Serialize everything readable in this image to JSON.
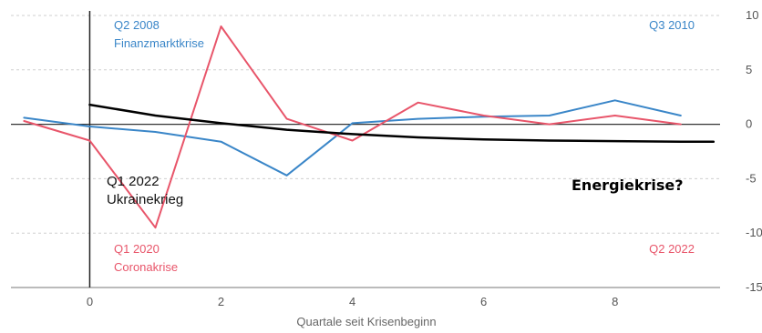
{
  "chart_data": {
    "type": "line",
    "xlabel": "Quartale seit Krisenbeginn",
    "ylabel": "",
    "xlim": [
      -1.2,
      9.6
    ],
    "ylim": [
      -15,
      10
    ],
    "x_ticks": [
      0,
      2,
      4,
      6,
      8
    ],
    "y_ticks": [
      10,
      5,
      0,
      -5,
      -10,
      -15
    ],
    "y_tick_labels": [
      "10",
      "5",
      "0",
      "-5",
      "-10",
      "-15"
    ],
    "grid": true,
    "series": [
      {
        "name": "Finanzmarktkrise",
        "color": "#3a86c8",
        "x": [
          -1,
          0,
          1,
          2,
          3,
          4,
          5,
          6,
          7,
          8,
          9
        ],
        "y": [
          0.6,
          -0.2,
          -0.7,
          -1.6,
          -4.7,
          0.1,
          0.5,
          0.7,
          0.8,
          2.2,
          0.8
        ]
      },
      {
        "name": "Coronakrise",
        "color": "#e8556a",
        "x": [
          -1,
          0,
          1,
          2,
          3,
          4,
          5,
          6,
          7,
          8,
          9
        ],
        "y": [
          0.3,
          -1.5,
          -9.5,
          9.0,
          0.5,
          -1.5,
          2.0,
          0.8,
          0.0,
          0.8,
          0.0
        ]
      },
      {
        "name": "Energiekrise?",
        "color": "#000000",
        "x": [
          0,
          1,
          2,
          3,
          4,
          5,
          6,
          7,
          8,
          9,
          9.5
        ],
        "y": [
          1.8,
          0.8,
          0.1,
          -0.5,
          -0.9,
          -1.2,
          -1.4,
          -1.5,
          -1.55,
          -1.6,
          -1.6
        ]
      }
    ],
    "annotations": {
      "fin_date": "Q2 2008",
      "fin_name": "Finanzmarktkrise",
      "fin_end": "Q3 2010",
      "covid_date": "Q1 2020",
      "covid_name": "Coronakrise",
      "covid_end": "Q2 2022",
      "ukraine_date": "Q1 2022",
      "ukraine_name": "Ukrainekrieg",
      "energy_label": "Energiekrise?"
    }
  }
}
